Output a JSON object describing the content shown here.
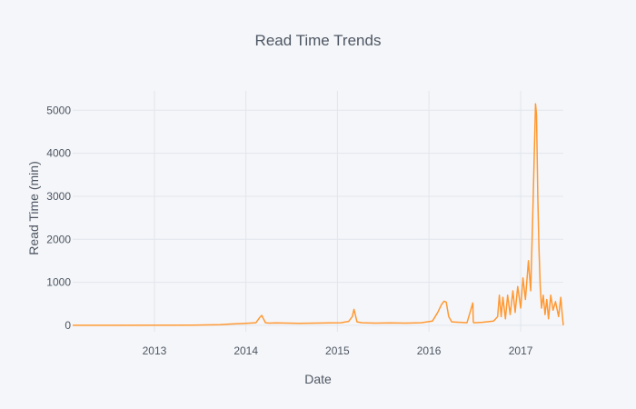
{
  "chart_data": {
    "type": "line",
    "title": "Read Time Trends",
    "xlabel": "Date",
    "ylabel": "Read Time (min)",
    "xlim": [
      "2012-02-10",
      "2017-06-20"
    ],
    "ylim": [
      -150,
      5450
    ],
    "x_ticks": [
      "2013",
      "2014",
      "2015",
      "2016",
      "2017"
    ],
    "y_ticks": [
      "0",
      "1000",
      "2000",
      "3000",
      "4000",
      "5000"
    ],
    "grid": true,
    "legend": "none",
    "series_color": "#FF9933",
    "series": [
      {
        "x": [
          "2012-02-10",
          "2013-06-01",
          "2013-09-20",
          "2013-11-01",
          "2013-12-15",
          "2014-02-10",
          "2014-02-25",
          "2014-03-05",
          "2014-03-12",
          "2014-03-20",
          "2014-04-05",
          "2014-05-01",
          "2014-06-15",
          "2014-08-01",
          "2014-10-01",
          "2014-12-01",
          "2015-01-15",
          "2015-02-15",
          "2015-03-01",
          "2015-03-08",
          "2015-03-13",
          "2015-03-20",
          "2015-04-10",
          "2015-06-01",
          "2015-08-01",
          "2015-10-01",
          "2015-12-01",
          "2016-01-15",
          "2016-02-05",
          "2016-02-20",
          "2016-03-01",
          "2016-03-10",
          "2016-03-20",
          "2016-04-01",
          "2016-05-01",
          "2016-06-01",
          "2016-06-24",
          "2016-06-26",
          "2016-06-28",
          "2016-08-01",
          "2016-09-15",
          "2016-10-01",
          "2016-10-08",
          "2016-10-15",
          "2016-10-22",
          "2016-11-01",
          "2016-11-10",
          "2016-11-20",
          "2016-12-01",
          "2016-12-10",
          "2016-12-20",
          "2017-01-01",
          "2017-01-10",
          "2017-01-20",
          "2017-02-01",
          "2017-02-10",
          "2017-02-18",
          "2017-02-25",
          "2017-03-01",
          "2017-03-05",
          "2017-03-10",
          "2017-03-15",
          "2017-03-20",
          "2017-03-25",
          "2017-04-01",
          "2017-04-08",
          "2017-04-15",
          "2017-04-22",
          "2017-05-01",
          "2017-05-10",
          "2017-05-20",
          "2017-06-01",
          "2017-06-10",
          "2017-06-15",
          "2017-06-20"
        ],
        "y": [
          0,
          5,
          15,
          30,
          40,
          60,
          180,
          230,
          150,
          60,
          50,
          55,
          50,
          45,
          50,
          55,
          60,
          90,
          200,
          370,
          250,
          80,
          60,
          50,
          55,
          50,
          60,
          100,
          300,
          480,
          560,
          540,
          200,
          80,
          70,
          60,
          520,
          80,
          60,
          70,
          100,
          200,
          700,
          200,
          650,
          150,
          700,
          250,
          800,
          300,
          900,
          400,
          1100,
          600,
          1500,
          800,
          2500,
          4200,
          5150,
          4900,
          3000,
          1800,
          900,
          400,
          700,
          250,
          600,
          150,
          700,
          350,
          550,
          200,
          650,
          300,
          0
        ]
      }
    ]
  }
}
